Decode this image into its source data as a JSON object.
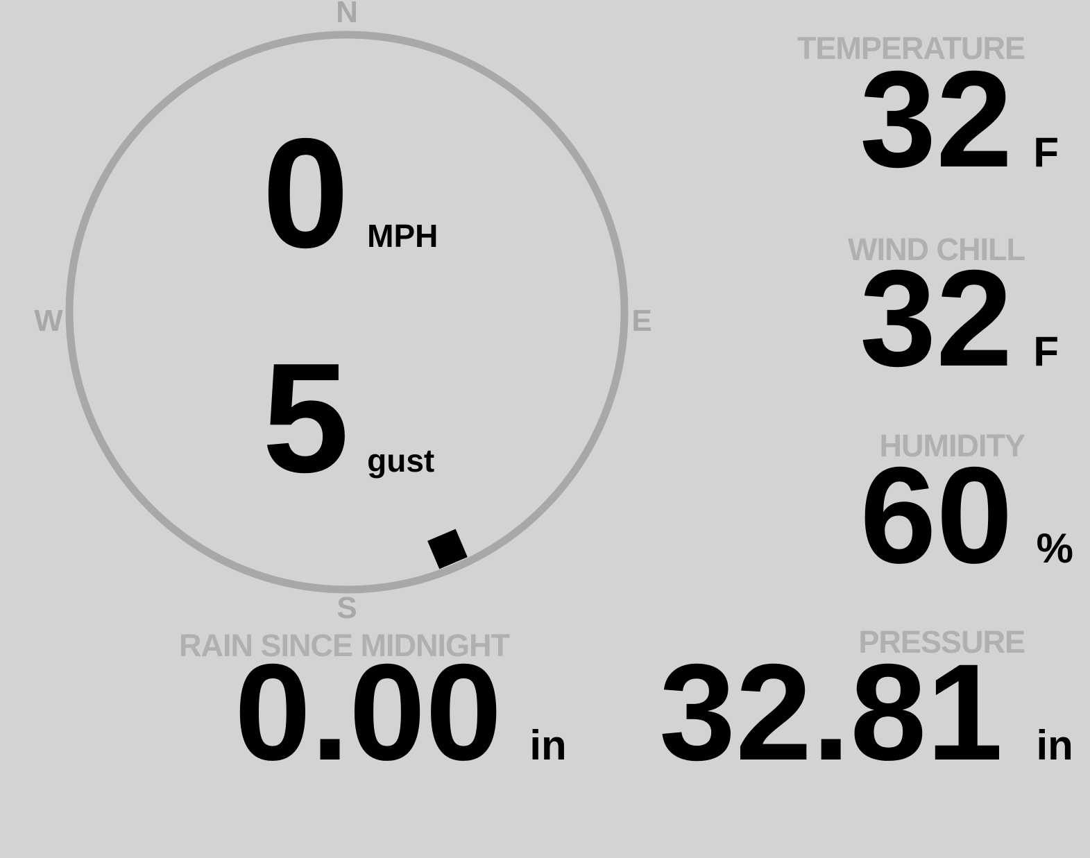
{
  "wind_gauge": {
    "cardinals": {
      "n": "N",
      "e": "E",
      "s": "S",
      "w": "W"
    },
    "speed": {
      "value": "0",
      "unit": "MPH"
    },
    "gust": {
      "value": "5",
      "unit": "gust"
    },
    "direction_marker": {
      "bearing_deg": 157
    }
  },
  "metrics": {
    "temperature": {
      "label": "TEMPERATURE",
      "value": "32",
      "unit": "F"
    },
    "wind_chill": {
      "label": "WIND CHILL",
      "value": "32",
      "unit": "F"
    },
    "humidity": {
      "label": "HUMIDITY",
      "value": "60",
      "unit": "%"
    },
    "rain": {
      "label": "RAIN SINCE MIDNIGHT",
      "value": "0.00",
      "unit": "in"
    },
    "pressure": {
      "label": "PRESSURE",
      "value": "32.81",
      "unit": "in"
    }
  },
  "colors": {
    "background": "#d3d3d3",
    "dial": "#a8a8a8",
    "label": "#b0b0b0",
    "value": "#000000"
  }
}
